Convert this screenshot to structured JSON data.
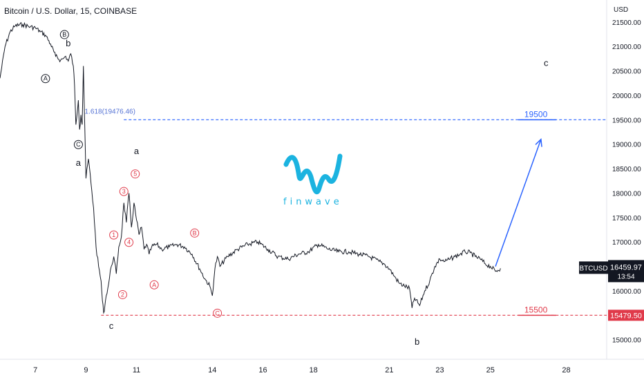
{
  "chart_data": {
    "type": "line",
    "title": "Bitcoin / U.S. Dollar, 15, COINBASE",
    "currency": "USD",
    "ylim": [
      14600,
      21950
    ],
    "xlim": [
      5.6,
      29.6
    ],
    "x_ticks": [
      7,
      9,
      11,
      14,
      16,
      18,
      21,
      23,
      25,
      28
    ],
    "y_ticks": [
      15000,
      15500,
      16000,
      16500,
      17000,
      17500,
      18000,
      18500,
      19000,
      19500,
      20000,
      20500,
      21000,
      21500
    ],
    "x_tick_labels": [
      "7",
      "9",
      "11",
      "14",
      "16",
      "18",
      "21",
      "23",
      "25",
      "28"
    ],
    "y_tick_labels": [
      "15000.00",
      "15500.00",
      "16000.00",
      "16500.00",
      "17000.00",
      "17500.00",
      "18000.00",
      "18500.00",
      "19000.00",
      "19500.00",
      "20000.00",
      "20500.00",
      "21000.00",
      "21500.00"
    ],
    "series": [
      {
        "x": [
          5.6,
          5.8,
          6.0,
          6.2,
          6.5,
          6.8,
          7.0,
          7.2,
          7.4,
          7.6,
          7.8,
          8.0,
          8.1,
          8.2,
          8.3,
          8.4,
          8.5,
          8.55,
          8.6,
          8.7,
          8.75,
          8.8,
          8.85,
          8.9,
          9.0,
          9.1,
          9.2,
          9.3,
          9.4,
          9.5,
          9.6,
          9.65,
          9.7,
          9.75,
          9.8,
          9.9,
          10.0,
          10.1,
          10.2,
          10.3,
          10.4,
          10.5,
          10.6,
          10.7,
          10.8,
          10.9,
          11.0,
          11.1,
          11.2,
          11.3,
          11.4,
          11.5,
          11.6,
          11.8,
          12.0,
          12.3,
          12.6,
          12.9,
          13.2,
          13.5,
          13.7,
          13.9,
          14.0,
          14.1,
          14.2,
          14.3,
          14.6,
          15.0,
          15.4,
          15.8,
          16.2,
          16.6,
          17.0,
          17.4,
          17.8,
          18.2,
          18.6,
          19.0,
          19.4,
          19.8,
          20.2,
          20.6,
          20.8,
          21.0,
          21.2,
          21.4,
          21.6,
          21.8,
          21.9,
          22.0,
          22.2,
          22.4,
          22.6,
          22.8,
          23.0,
          23.2,
          23.4,
          23.6,
          23.8,
          24.0,
          24.2,
          24.4,
          24.6,
          24.8,
          25.0,
          25.2,
          25.4
        ],
        "y": [
          20350,
          21000,
          21300,
          21420,
          21450,
          21400,
          21380,
          21300,
          21230,
          21050,
          20800,
          20720,
          20750,
          20800,
          20700,
          20850,
          20600,
          20200,
          19400,
          19900,
          19300,
          19600,
          19400,
          20600,
          18300,
          18700,
          18200,
          17700,
          16900,
          16500,
          16200,
          15800,
          15550,
          15700,
          15900,
          16150,
          16500,
          16700,
          16350,
          16900,
          17100,
          17800,
          17400,
          18000,
          17300,
          17800,
          17450,
          17150,
          17300,
          16850,
          16950,
          16750,
          16900,
          16950,
          16850,
          16900,
          16950,
          16900,
          16750,
          16450,
          16250,
          16100,
          15900,
          16450,
          16700,
          16500,
          16700,
          16850,
          16950,
          17000,
          16850,
          16700,
          16650,
          16750,
          16800,
          16950,
          16850,
          16800,
          16800,
          16750,
          16700,
          16600,
          16550,
          16450,
          16300,
          16150,
          16100,
          16050,
          15650,
          15850,
          15700,
          16000,
          16200,
          16500,
          16650,
          16600,
          16650,
          16700,
          16750,
          16800,
          16780,
          16700,
          16650,
          16550,
          16500,
          16400,
          16460
        ]
      }
    ],
    "current_price": {
      "label": "BTCUSD",
      "value": "16459.97",
      "countdown": "13:54"
    },
    "support_level": {
      "value": 15500,
      "axis_label": "15479.50",
      "text": "15500"
    },
    "target_level": {
      "value": 19500,
      "text": "19500"
    },
    "fib_label": "1.618(19476.46)",
    "projection": {
      "from": [
        25.2,
        16500
      ],
      "to": [
        27.0,
        19100
      ]
    },
    "wave_labels": [
      {
        "text": "b",
        "x": 8.3,
        "y": 21000,
        "style": "plain"
      },
      {
        "text": "B",
        "x": 8.15,
        "y": 21200,
        "style": "circle-black"
      },
      {
        "text": "A",
        "x": 7.4,
        "y": 20300,
        "style": "circle-black"
      },
      {
        "text": "C",
        "x": 8.7,
        "y": 18950,
        "style": "circle-black"
      },
      {
        "text": "a",
        "x": 8.7,
        "y": 18560,
        "style": "plain"
      },
      {
        "text": "a",
        "x": 11.0,
        "y": 18800,
        "style": "plain"
      },
      {
        "text": "5",
        "x": 10.95,
        "y": 18350,
        "style": "circle-red"
      },
      {
        "text": "3",
        "x": 10.5,
        "y": 17990,
        "style": "circle-red"
      },
      {
        "text": "1",
        "x": 10.1,
        "y": 17100,
        "style": "circle-red"
      },
      {
        "text": "4",
        "x": 10.7,
        "y": 16950,
        "style": "circle-red"
      },
      {
        "text": "2",
        "x": 10.45,
        "y": 15880,
        "style": "circle-red"
      },
      {
        "text": "A",
        "x": 11.7,
        "y": 16080,
        "style": "circle-red"
      },
      {
        "text": "B",
        "x": 13.3,
        "y": 17140,
        "style": "circle-red"
      },
      {
        "text": "C",
        "x": 14.2,
        "y": 15500,
        "style": "circle-red"
      },
      {
        "text": "c",
        "x": 10.0,
        "y": 15220,
        "style": "plain"
      },
      {
        "text": "b",
        "x": 22.1,
        "y": 14900,
        "style": "plain"
      },
      {
        "text": "c",
        "x": 27.2,
        "y": 20600,
        "style": "plain"
      }
    ],
    "colors": {
      "price": "#131722",
      "target": "#2962ff",
      "support": "#e03a4a",
      "fib_text": "#5472d4"
    },
    "grid": false
  },
  "logo": {
    "word": "finwave"
  }
}
